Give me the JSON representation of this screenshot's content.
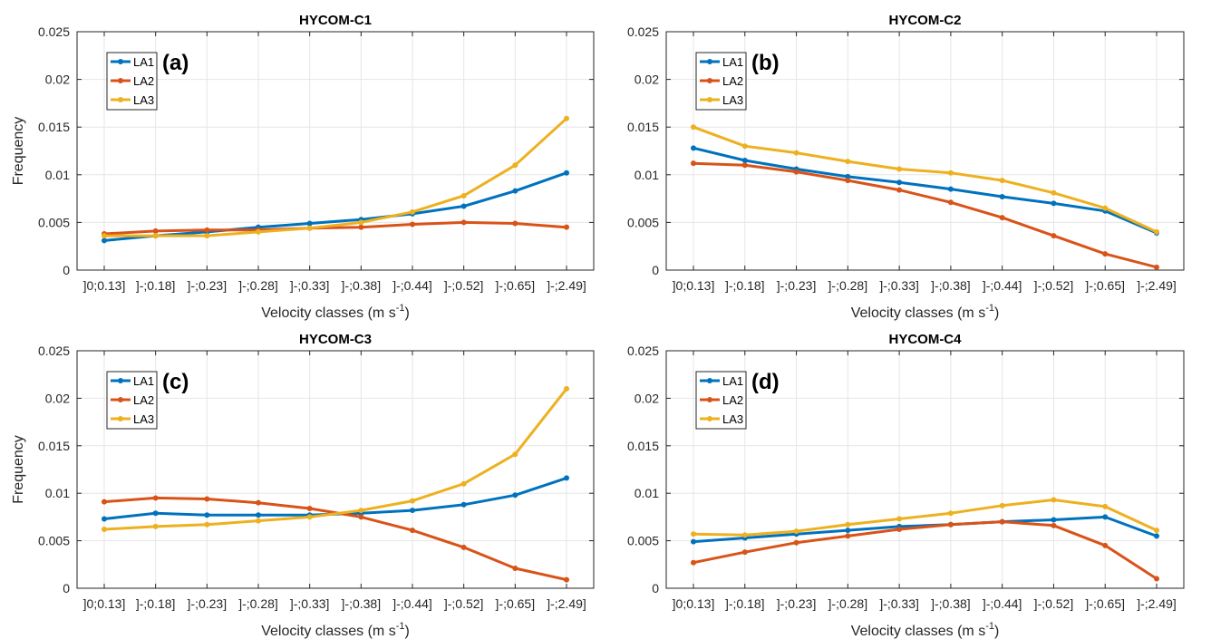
{
  "colors": {
    "LA1": "#0072BD",
    "LA2": "#D95319",
    "LA3": "#EDB120",
    "grid": "#e6e6e6",
    "axis": "#262626"
  },
  "chart_data": [
    {
      "type": "line",
      "title": "HYCOM-C1",
      "panel_label": "(a)",
      "xlabel": "Velocity classes (m s",
      "xlabel_sup": "-1",
      "xlabel_close": ")",
      "ylabel": "Frequency",
      "ylim": [
        0,
        0.025
      ],
      "yticks": [
        "0",
        "0.005",
        "0.01",
        "0.015",
        "0.02",
        "0.025"
      ],
      "grid": true,
      "legend_position": "top-left",
      "categories": [
        "]0;0.13]",
        "]-;0.18]",
        "]-;0.23]",
        "]-;0.28]",
        "]-;0.33]",
        "]-;0.38]",
        "]-;0.44]",
        "]-;0.52]",
        "]-;0.65]",
        "]-;2.49]"
      ],
      "series": [
        {
          "name": "LA1",
          "color": "#0072BD",
          "values": [
            0.0031,
            0.0036,
            0.004,
            0.0045,
            0.0049,
            0.0053,
            0.0059,
            0.0067,
            0.0083,
            0.0102
          ]
        },
        {
          "name": "LA2",
          "color": "#D95319",
          "values": [
            0.0038,
            0.0041,
            0.0042,
            0.0042,
            0.0044,
            0.0045,
            0.0048,
            0.005,
            0.0049,
            0.0045
          ]
        },
        {
          "name": "LA3",
          "color": "#EDB120",
          "values": [
            0.0036,
            0.0036,
            0.0036,
            0.004,
            0.0044,
            0.005,
            0.0061,
            0.0078,
            0.011,
            0.0159
          ]
        }
      ]
    },
    {
      "type": "line",
      "title": "HYCOM-C2",
      "panel_label": "(b)",
      "xlabel": "Velocity classes (m s",
      "xlabel_sup": "-1",
      "xlabel_close": ")",
      "ylabel": "",
      "ylim": [
        0,
        0.025
      ],
      "yticks": [
        "0",
        "0.005",
        "0.01",
        "0.015",
        "0.02",
        "0.025"
      ],
      "grid": true,
      "legend_position": "top-left",
      "categories": [
        "]0;0.13]",
        "]-;0.18]",
        "]-;0.23]",
        "]-;0.28]",
        "]-;0.33]",
        "]-;0.38]",
        "]-;0.44]",
        "]-;0.52]",
        "]-;0.65]",
        "]-;2.49]"
      ],
      "series": [
        {
          "name": "LA1",
          "color": "#0072BD",
          "values": [
            0.0128,
            0.0115,
            0.0106,
            0.0098,
            0.0092,
            0.0085,
            0.0077,
            0.007,
            0.0062,
            0.0039
          ]
        },
        {
          "name": "LA2",
          "color": "#D95319",
          "values": [
            0.0112,
            0.011,
            0.0103,
            0.0094,
            0.0084,
            0.0071,
            0.0055,
            0.0036,
            0.0017,
            0.0003
          ]
        },
        {
          "name": "LA3",
          "color": "#EDB120",
          "values": [
            0.015,
            0.013,
            0.0123,
            0.0114,
            0.0106,
            0.0102,
            0.0094,
            0.0081,
            0.0065,
            0.004
          ]
        }
      ]
    },
    {
      "type": "line",
      "title": "HYCOM-C3",
      "panel_label": "(c)",
      "xlabel": "Velocity classes (m s",
      "xlabel_sup": "-1",
      "xlabel_close": ")",
      "ylabel": "Frequency",
      "ylim": [
        0,
        0.025
      ],
      "yticks": [
        "0",
        "0.005",
        "0.01",
        "0.015",
        "0.02",
        "0.025"
      ],
      "grid": true,
      "legend_position": "top-left",
      "categories": [
        "]0;0.13]",
        "]-;0.18]",
        "]-;0.23]",
        "]-;0.28]",
        "]-;0.33]",
        "]-;0.38]",
        "]-;0.44]",
        "]-;0.52]",
        "]-;0.65]",
        "]-;2.49]"
      ],
      "series": [
        {
          "name": "LA1",
          "color": "#0072BD",
          "values": [
            0.0073,
            0.0079,
            0.0077,
            0.0077,
            0.0077,
            0.0079,
            0.0082,
            0.0088,
            0.0098,
            0.0116
          ]
        },
        {
          "name": "LA2",
          "color": "#D95319",
          "values": [
            0.0091,
            0.0095,
            0.0094,
            0.009,
            0.0084,
            0.0075,
            0.0061,
            0.0043,
            0.0021,
            0.0009
          ]
        },
        {
          "name": "LA3",
          "color": "#EDB120",
          "values": [
            0.0062,
            0.0065,
            0.0067,
            0.0071,
            0.0075,
            0.0082,
            0.0092,
            0.011,
            0.0141,
            0.021
          ]
        }
      ]
    },
    {
      "type": "line",
      "title": "HYCOM-C4",
      "panel_label": "(d)",
      "xlabel": "Velocity classes (m s",
      "xlabel_sup": "-1",
      "xlabel_close": ")",
      "ylabel": "",
      "ylim": [
        0,
        0.025
      ],
      "yticks": [
        "0",
        "0.005",
        "0.01",
        "0.015",
        "0.02",
        "0.025"
      ],
      "grid": true,
      "legend_position": "top-left",
      "categories": [
        "]0;0.13]",
        "]-;0.18]",
        "]-;0.23]",
        "]-;0.28]",
        "]-;0.33]",
        "]-;0.38]",
        "]-;0.44]",
        "]-;0.52]",
        "]-;0.65]",
        "]-;2.49]"
      ],
      "series": [
        {
          "name": "LA1",
          "color": "#0072BD",
          "values": [
            0.0049,
            0.0053,
            0.0057,
            0.0061,
            0.0065,
            0.0067,
            0.007,
            0.0072,
            0.0075,
            0.0055
          ]
        },
        {
          "name": "LA2",
          "color": "#D95319",
          "values": [
            0.0027,
            0.0038,
            0.0048,
            0.0055,
            0.0062,
            0.0067,
            0.007,
            0.0066,
            0.0045,
            0.001
          ]
        },
        {
          "name": "LA3",
          "color": "#EDB120",
          "values": [
            0.0057,
            0.0056,
            0.006,
            0.0067,
            0.0073,
            0.0079,
            0.0087,
            0.0093,
            0.0086,
            0.0061
          ]
        }
      ]
    }
  ]
}
